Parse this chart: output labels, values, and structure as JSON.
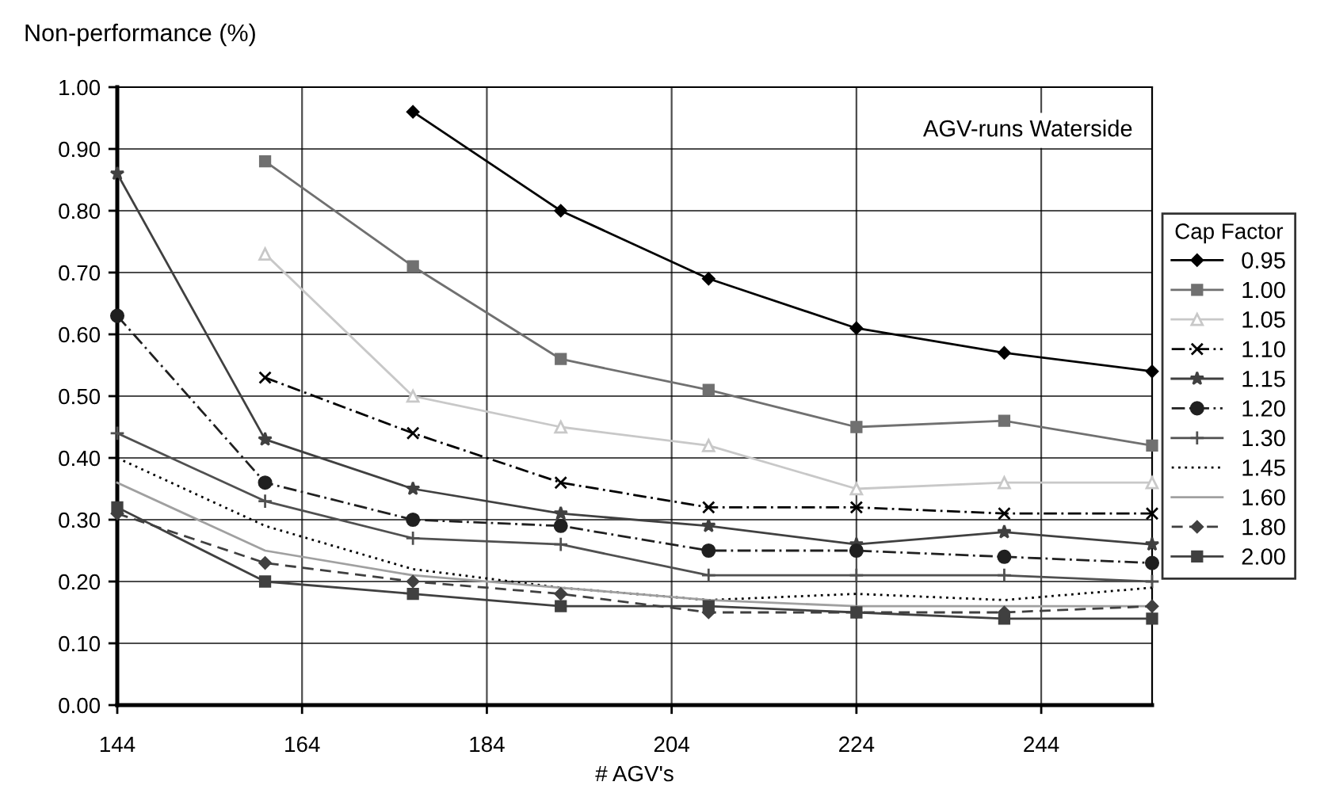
{
  "chart_data": {
    "type": "line",
    "ylabel": "Non-performance (%)",
    "xlabel": "# AGV's",
    "legend_title": "Cap Factor",
    "annotations": [
      "AGV-runs Waterside"
    ],
    "x": [
      144,
      160,
      176,
      192,
      208,
      224,
      240,
      256
    ],
    "series": [
      {
        "name": "0.95",
        "color": "#000000",
        "marker": "diamond",
        "line_style": "solid",
        "values": [
          null,
          null,
          0.96,
          0.8,
          0.69,
          0.61,
          0.57,
          0.54
        ]
      },
      {
        "name": "1.00",
        "color": "#707070",
        "marker": "square",
        "line_style": "solid",
        "values": [
          null,
          0.88,
          0.71,
          0.56,
          0.51,
          0.45,
          0.46,
          0.42
        ]
      },
      {
        "name": "1.05",
        "color": "#c8c8c8",
        "marker": "triangle",
        "line_style": "solid",
        "values": [
          null,
          0.73,
          0.5,
          0.45,
          0.42,
          0.35,
          0.36,
          0.36
        ]
      },
      {
        "name": "1.10",
        "color": "#000000",
        "marker": "cross",
        "line_style": "dashdot",
        "values": [
          null,
          0.53,
          0.44,
          0.36,
          0.32,
          0.32,
          0.31,
          0.31
        ]
      },
      {
        "name": "1.15",
        "color": "#404040",
        "marker": "star",
        "line_style": "solid",
        "values": [
          0.86,
          0.43,
          0.35,
          0.31,
          0.29,
          0.26,
          0.28,
          0.26
        ]
      },
      {
        "name": "1.20",
        "color": "#202020",
        "marker": "circle",
        "line_style": "dashdot",
        "values": [
          0.63,
          0.36,
          0.3,
          0.29,
          0.25,
          0.25,
          0.24,
          0.23
        ]
      },
      {
        "name": "1.30",
        "color": "#505050",
        "marker": "plus",
        "line_style": "solid",
        "values": [
          0.44,
          0.33,
          0.27,
          0.26,
          0.21,
          0.21,
          0.21,
          0.2
        ]
      },
      {
        "name": "1.45",
        "color": "#000000",
        "marker": "none",
        "line_style": "dotted",
        "values": [
          0.4,
          0.29,
          0.22,
          0.19,
          0.17,
          0.18,
          0.17,
          0.19
        ]
      },
      {
        "name": "1.60",
        "color": "#a0a0a0",
        "marker": "none",
        "line_style": "solid",
        "values": [
          0.36,
          0.25,
          0.21,
          0.19,
          0.17,
          0.16,
          0.16,
          0.16
        ]
      },
      {
        "name": "1.80",
        "color": "#404040",
        "marker": "diamond",
        "line_style": "dashed",
        "values": [
          0.31,
          0.23,
          0.2,
          0.18,
          0.15,
          0.15,
          0.15,
          0.16
        ]
      },
      {
        "name": "2.00",
        "color": "#404040",
        "marker": "square",
        "line_style": "solid",
        "values": [
          0.32,
          0.2,
          0.18,
          0.16,
          0.16,
          0.15,
          0.14,
          0.14
        ]
      }
    ],
    "xlim": [
      144,
      256
    ],
    "xticks": [
      144,
      164,
      184,
      204,
      224,
      244
    ],
    "ylim": [
      0,
      1
    ],
    "yticks": [
      {
        "value": 0,
        "label": "0.00"
      },
      {
        "value": 0.1,
        "label": "0.10"
      },
      {
        "value": 0.2,
        "label": "0.20"
      },
      {
        "value": 0.3,
        "label": "0.30"
      },
      {
        "value": 0.4,
        "label": "0.40"
      },
      {
        "value": 0.5,
        "label": "0.50"
      },
      {
        "value": 0.6,
        "label": "0.60"
      },
      {
        "value": 0.7,
        "label": "0.70"
      },
      {
        "value": 0.8,
        "label": "0.80"
      },
      {
        "value": 0.9,
        "label": "0.90"
      },
      {
        "value": 1,
        "label": "1.00"
      }
    ],
    "grid": true,
    "legend": "right"
  }
}
